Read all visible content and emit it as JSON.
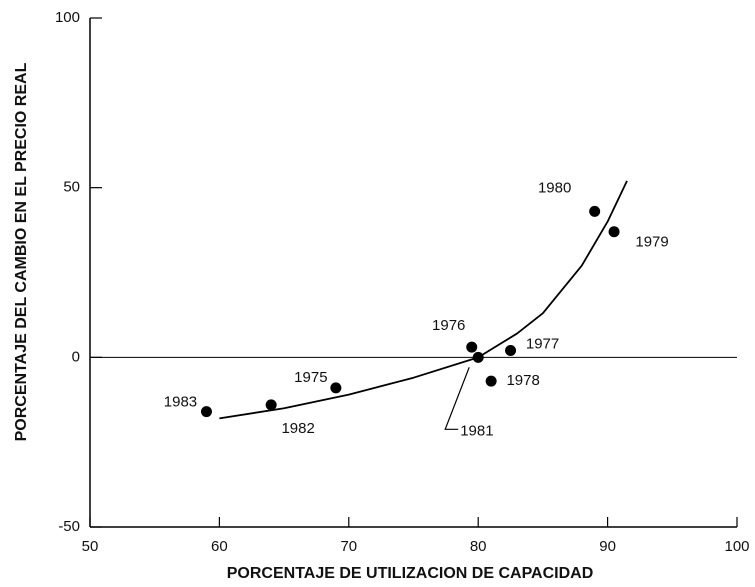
{
  "chart_data": {
    "type": "scatter",
    "xlabel": "PORCENTAJE DE UTILIZACION  DE  CAPACIDAD",
    "ylabel": "PORCENTAJE DEL CAMBIO EN EL PRECIO REAL",
    "xlim": [
      50,
      100
    ],
    "ylim": [
      -50,
      100
    ],
    "xticks": [
      50,
      60,
      70,
      80,
      90,
      100
    ],
    "yticks": [
      -50,
      0,
      50,
      100
    ],
    "color": "#000000",
    "points": {
      "x": [
        59,
        64,
        69,
        79.5,
        80,
        81,
        82.5,
        89,
        90.5
      ],
      "y": [
        -16,
        -14,
        -9,
        3,
        0,
        -7,
        2,
        43,
        37
      ],
      "labels": [
        "1983",
        "1982",
        "1975",
        "1976",
        "1981",
        "1978",
        "1977",
        "1980",
        "1979"
      ]
    },
    "curve": {
      "x": [
        60,
        65,
        70,
        75,
        80,
        83,
        85,
        88,
        90,
        91.5
      ],
      "y": [
        -18,
        -15,
        -11,
        -6,
        0,
        7,
        13,
        27,
        40,
        52
      ]
    }
  }
}
